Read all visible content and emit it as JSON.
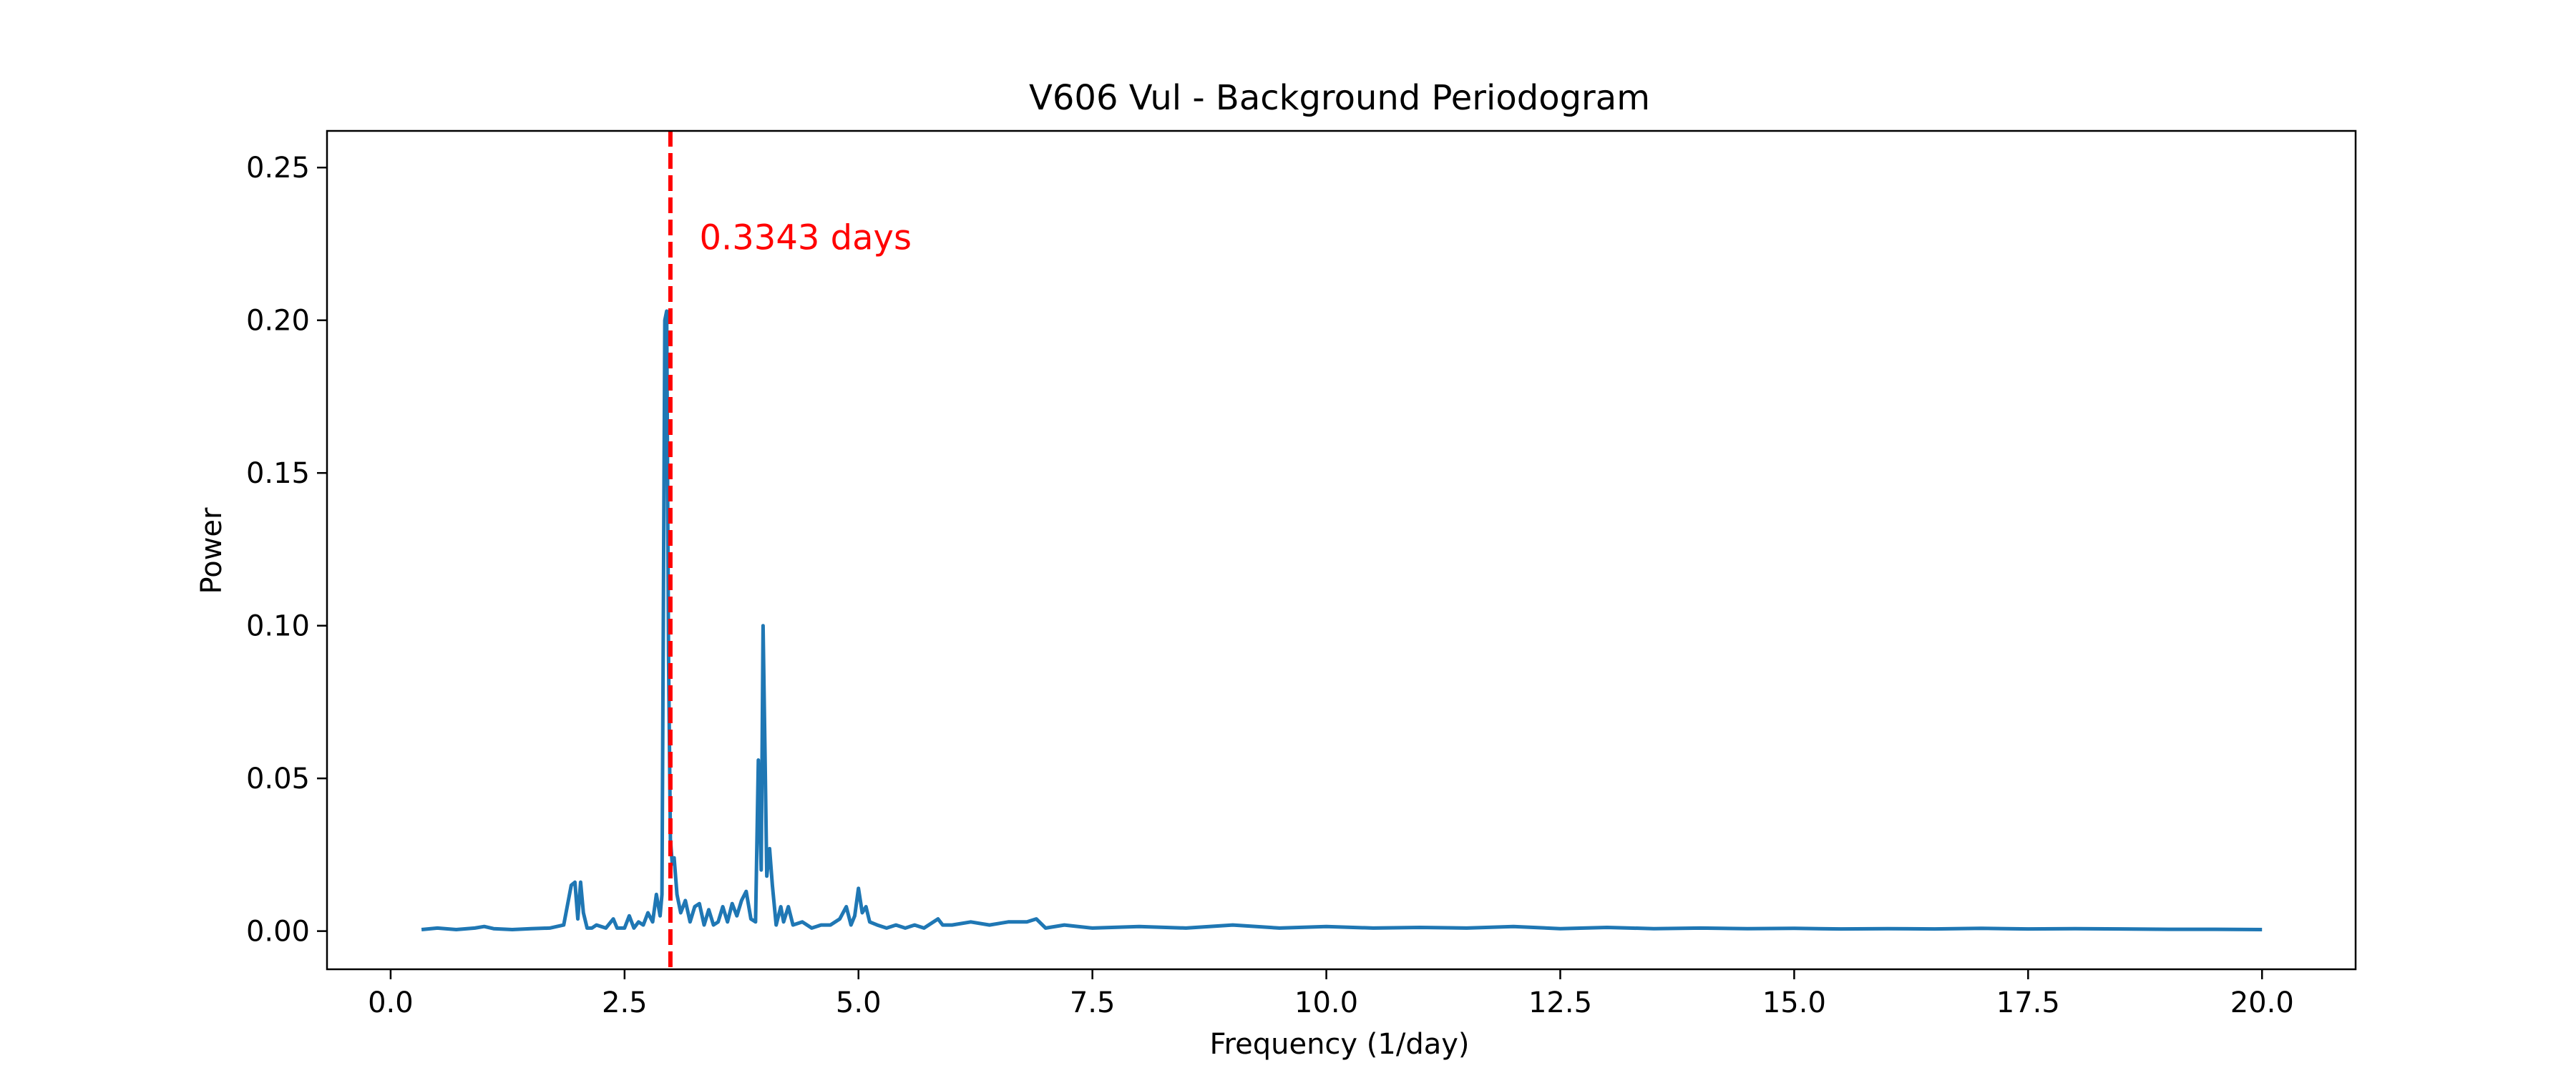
{
  "chart_data": {
    "type": "line",
    "title": "V606 Vul - Background Periodogram",
    "xlabel": "Frequency (1/day)",
    "ylabel": "Power",
    "xlim": [
      -0.68,
      21.0
    ],
    "ylim": [
      -0.0125,
      0.262
    ],
    "xticks": [
      0.0,
      2.5,
      5.0,
      7.5,
      10.0,
      12.5,
      15.0,
      17.5,
      20.0
    ],
    "xtick_labels": [
      "0.0",
      "2.5",
      "5.0",
      "7.5",
      "10.0",
      "12.5",
      "15.0",
      "17.5",
      "20.0"
    ],
    "yticks": [
      0.0,
      0.05,
      0.1,
      0.15,
      0.2,
      0.25
    ],
    "ytick_labels": [
      "0.00",
      "0.05",
      "0.10",
      "0.15",
      "0.20",
      "0.25"
    ],
    "grid": false,
    "series": [
      {
        "color": "#1f77b4",
        "x": [
          0.33,
          0.5,
          0.7,
          0.9,
          1.0,
          1.1,
          1.3,
          1.5,
          1.7,
          1.85,
          1.93,
          1.97,
          2.0,
          2.03,
          2.06,
          2.1,
          2.15,
          2.2,
          2.3,
          2.38,
          2.42,
          2.5,
          2.55,
          2.6,
          2.65,
          2.7,
          2.75,
          2.8,
          2.84,
          2.88,
          2.9,
          2.93,
          2.95,
          2.97,
          2.99,
          3.01,
          3.03,
          3.06,
          3.1,
          3.15,
          3.2,
          3.25,
          3.3,
          3.35,
          3.4,
          3.45,
          3.5,
          3.55,
          3.6,
          3.65,
          3.7,
          3.75,
          3.8,
          3.85,
          3.9,
          3.93,
          3.96,
          3.98,
          4.0,
          4.02,
          4.05,
          4.08,
          4.12,
          4.17,
          4.2,
          4.25,
          4.3,
          4.4,
          4.5,
          4.6,
          4.7,
          4.8,
          4.87,
          4.92,
          4.96,
          5.0,
          5.04,
          5.08,
          5.12,
          5.2,
          5.3,
          5.4,
          5.5,
          5.6,
          5.7,
          5.85,
          5.9,
          6.0,
          6.2,
          6.4,
          6.6,
          6.8,
          6.9,
          7.0,
          7.2,
          7.5,
          8.0,
          8.5,
          9.0,
          9.5,
          10.0,
          10.5,
          11.0,
          11.5,
          12.0,
          12.5,
          13.0,
          13.5,
          14.0,
          14.5,
          15.0,
          15.5,
          16.0,
          16.5,
          17.0,
          17.5,
          18.0,
          18.5,
          19.0,
          19.5,
          20.0
        ],
        "y": [
          0.0005,
          0.001,
          0.0005,
          0.001,
          0.0015,
          0.0008,
          0.0005,
          0.0008,
          0.001,
          0.002,
          0.015,
          0.016,
          0.004,
          0.016,
          0.006,
          0.001,
          0.001,
          0.002,
          0.001,
          0.004,
          0.001,
          0.001,
          0.005,
          0.001,
          0.003,
          0.002,
          0.006,
          0.003,
          0.012,
          0.005,
          0.012,
          0.2,
          0.203,
          0.09,
          0.03,
          0.022,
          0.024,
          0.012,
          0.006,
          0.01,
          0.003,
          0.008,
          0.009,
          0.002,
          0.007,
          0.002,
          0.003,
          0.008,
          0.003,
          0.009,
          0.005,
          0.01,
          0.013,
          0.004,
          0.003,
          0.056,
          0.02,
          0.1,
          0.06,
          0.018,
          0.027,
          0.015,
          0.002,
          0.008,
          0.003,
          0.008,
          0.002,
          0.003,
          0.001,
          0.002,
          0.002,
          0.004,
          0.008,
          0.002,
          0.005,
          0.014,
          0.006,
          0.008,
          0.003,
          0.002,
          0.001,
          0.002,
          0.001,
          0.002,
          0.001,
          0.004,
          0.002,
          0.002,
          0.003,
          0.002,
          0.003,
          0.003,
          0.004,
          0.001,
          0.002,
          0.001,
          0.0015,
          0.001,
          0.002,
          0.001,
          0.0015,
          0.001,
          0.0012,
          0.001,
          0.0015,
          0.0008,
          0.0012,
          0.0008,
          0.001,
          0.0008,
          0.0009,
          0.0007,
          0.0008,
          0.0007,
          0.0009,
          0.0007,
          0.0008,
          0.0007,
          0.0006,
          0.0006,
          0.0005
        ]
      }
    ],
    "vline": {
      "x": 2.99,
      "color": "#ff0000",
      "style": "dashed"
    },
    "annotation": {
      "text": "0.3343 days",
      "x": 3.3,
      "y": 0.227,
      "color": "#ff0000"
    }
  }
}
